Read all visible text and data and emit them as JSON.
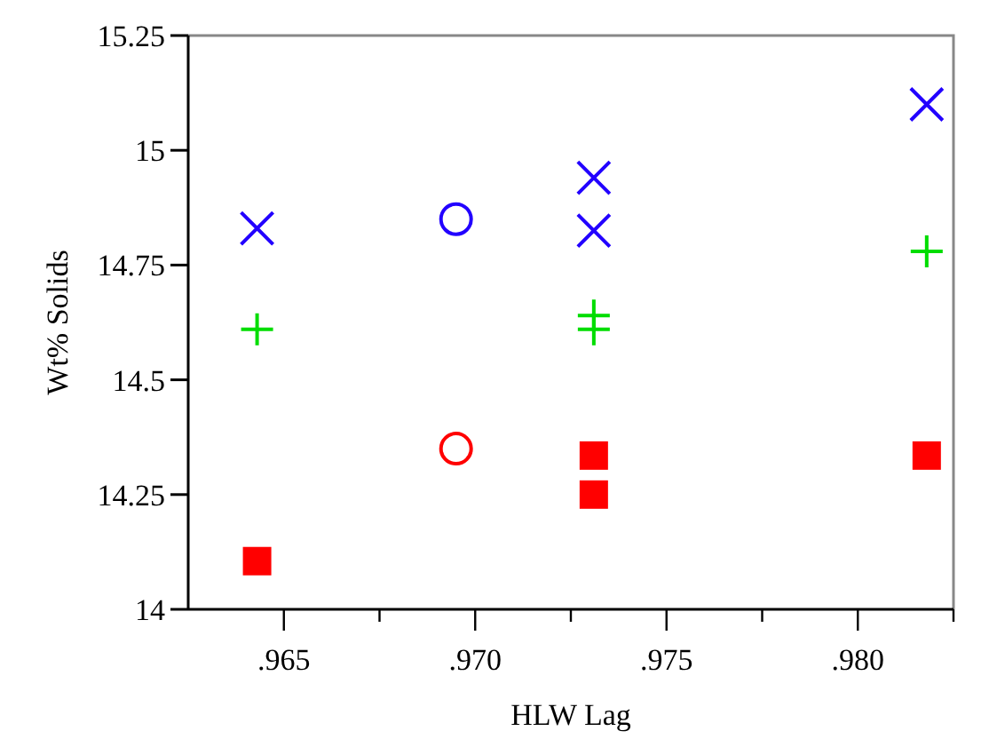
{
  "chart_data": {
    "type": "scatter",
    "xlabel": "HLW Lag",
    "ylabel": "Wt% Solids",
    "xlim": [
      0.9625,
      0.9825
    ],
    "ylim": [
      14,
      15.25
    ],
    "xticks": [
      {
        "value": 0.965,
        "label": ".965"
      },
      {
        "value": 0.9675,
        "label": null
      },
      {
        "value": 0.97,
        "label": ".970"
      },
      {
        "value": 0.9725,
        "label": null
      },
      {
        "value": 0.975,
        "label": ".975"
      },
      {
        "value": 0.9775,
        "label": null
      },
      {
        "value": 0.98,
        "label": ".980"
      },
      {
        "value": 0.9825,
        "label": null
      }
    ],
    "yticks": [
      14,
      14.25,
      14.5,
      14.75,
      15,
      15.25
    ],
    "grid": false,
    "series": [
      {
        "color": "#2200ff",
        "marker": "cross",
        "x": [
          0.9643,
          0.9731,
          0.9731,
          0.9818
        ],
        "values": [
          14.83,
          14.94,
          14.825,
          15.1
        ]
      },
      {
        "color": "#2200ff",
        "marker": "circle",
        "x": [
          0.9695
        ],
        "values": [
          14.85
        ]
      },
      {
        "color": "#00dd00",
        "marker": "plus",
        "x": [
          0.9643,
          0.9731,
          0.9731,
          0.9818
        ],
        "values": [
          14.61,
          14.64,
          14.61,
          14.78
        ]
      },
      {
        "color": "#ff0000",
        "marker": "circle",
        "x": [
          0.9695
        ],
        "values": [
          14.35
        ]
      },
      {
        "color": "#ff0000",
        "marker": "square",
        "x": [
          0.9643,
          0.9731,
          0.9731,
          0.9818
        ],
        "values": [
          14.105,
          14.335,
          14.25,
          14.335
        ]
      }
    ]
  }
}
